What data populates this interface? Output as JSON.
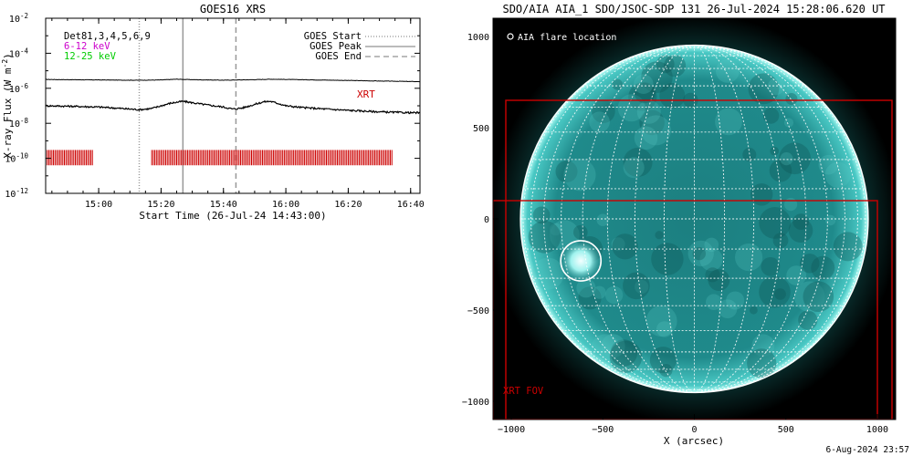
{
  "chart_data": [
    {
      "type": "line",
      "title": "GOES16 XRS",
      "xlabel": "Start Time (26-Jul-24 14:43:00)",
      "ylabel": "X-ray Flux (W m",
      "ylabel_sup": "-2",
      "yscale": "log",
      "x_range": [
        "14:43",
        "16:43"
      ],
      "ylim": [
        1e-12,
        0.01
      ],
      "x_ticks": [
        "15:00",
        "15:20",
        "15:40",
        "16:00",
        "16:20",
        "16:40"
      ],
      "y_ticks": [
        {
          "value": 1e-12,
          "base": "10",
          "exp": "-12"
        },
        {
          "value": 1e-10,
          "base": "10",
          "exp": "-10"
        },
        {
          "value": 1e-08,
          "base": "10",
          "exp": "-8"
        },
        {
          "value": 1e-06,
          "base": "10",
          "exp": "-6"
        },
        {
          "value": 0.0001,
          "base": "10",
          "exp": "-4"
        },
        {
          "value": 0.01,
          "base": "10",
          "exp": "-2"
        }
      ],
      "channels": [
        {
          "label": "Det81,3,4,5,6,9",
          "color": "#000000"
        },
        {
          "label": "6-12 keV",
          "color": "#cc00cc"
        },
        {
          "label": "12-25 keV",
          "color": "#00cc00"
        }
      ],
      "events": [
        {
          "label": "GOES Start",
          "time": "15:13",
          "style": "dotted"
        },
        {
          "label": "GOES Peak",
          "time": "15:27",
          "style": "solid"
        },
        {
          "label": "GOES End",
          "time": "15:44",
          "style": "dashed"
        }
      ],
      "series": [
        {
          "name": "",
          "color": "#000000",
          "time": [
            "14:43",
            "14:50",
            "15:00",
            "15:10",
            "15:15",
            "15:20",
            "15:25",
            "15:30",
            "15:40",
            "15:45",
            "15:50",
            "15:55",
            "16:00",
            "16:10",
            "16:20",
            "16:30",
            "16:43"
          ],
          "values": [
            3.2e-06,
            3.1e-06,
            3e-06,
            2.9e-06,
            2.9e-06,
            3e-06,
            3.3e-06,
            3.1e-06,
            2.9e-06,
            3e-06,
            3.1e-06,
            3.3e-06,
            3.2e-06,
            3e-06,
            2.8e-06,
            2.6e-06,
            2.4e-06
          ]
        },
        {
          "name": "",
          "color": "#000000",
          "time": [
            "14:43",
            "14:50",
            "15:00",
            "15:05",
            "15:10",
            "15:13",
            "15:17",
            "15:20",
            "15:23",
            "15:27",
            "15:30",
            "15:35",
            "15:40",
            "15:43",
            "15:46",
            "15:50",
            "15:53",
            "15:55",
            "15:58",
            "16:00",
            "16:05",
            "16:10",
            "16:20",
            "16:30",
            "16:40",
            "16:43"
          ],
          "values": [
            1e-07,
            9.5e-08,
            8.5e-08,
            7.5e-08,
            6.5e-08,
            6e-08,
            7e-08,
            1e-07,
            1.4e-07,
            1.8e-07,
            1.5e-07,
            1.1e-07,
            8.5e-08,
            6.5e-08,
            7.5e-08,
            1.2e-07,
            1.7e-07,
            1.8e-07,
            1.3e-07,
            1e-07,
            8e-08,
            7e-08,
            5.5e-08,
            4.5e-08,
            4e-08,
            4e-08
          ]
        }
      ],
      "xrt_bands": [
        {
          "start": "14:43",
          "end": "14:58"
        },
        {
          "start": "15:17",
          "end": "16:34"
        }
      ],
      "xrt_label": "XRT",
      "xrt_color": "#cc0000"
    },
    {
      "type": "image",
      "title": "SDO/AIA AIA_1 SDO/JSOC-SDP 131 26-Jul-2024 15:28:06.620 UT",
      "xlabel": "X (arcsec)",
      "ylabel": "",
      "xlim": [
        -1100,
        1100
      ],
      "ylim": [
        -1100,
        1100
      ],
      "x_ticks": [
        -1000,
        -500,
        0,
        500,
        1000
      ],
      "y_ticks": [
        -1000,
        -500,
        0,
        500,
        1000
      ],
      "solar_radius_arcsec": 950,
      "grid_spacing_deg": 10,
      "disk_color": "#1f8f8f",
      "legend": "AIA flare location",
      "flare_location": {
        "x": -620,
        "y": -230,
        "radius": 110
      },
      "fov_boxes": [
        {
          "x0": -1030,
          "x1": 1080,
          "y0": -1100,
          "y1": 650
        },
        {
          "x0": -1100,
          "x1": 1000,
          "y0": -1100,
          "y1": 100
        }
      ],
      "fov_label": "XRT FOV",
      "fov_color": "#cc0000"
    }
  ],
  "footer": {
    "date": "6-Aug-2024 23:57"
  }
}
